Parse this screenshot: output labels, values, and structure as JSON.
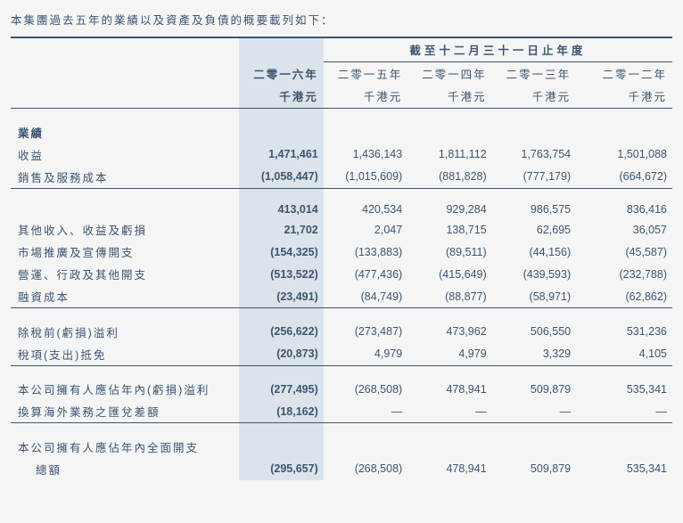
{
  "intro": "本集團過去五年的業績以及資產及負債的概要載列如下：",
  "header": {
    "span_title": "截至十二月三十一日止年度",
    "years": [
      "二零一六年",
      "二零一五年",
      "二零一四年",
      "二零一三年",
      "二零一二年"
    ],
    "units": [
      "千港元",
      "千港元",
      "千港元",
      "千港元",
      "千港元"
    ]
  },
  "sections": {
    "performance": "業績",
    "rows": {
      "revenue": {
        "label": "收益",
        "v": [
          "1,471,461",
          "1,436,143",
          "1,811,112",
          "1,763,754",
          "1,501,088"
        ]
      },
      "cost": {
        "label": "銷售及服務成本",
        "v": [
          "(1,058,447)",
          "(1,015,609)",
          "(881,828)",
          "(777,179)",
          "(664,672)"
        ]
      },
      "subtotal": {
        "label": "",
        "v": [
          "413,014",
          "420,534",
          "929,284",
          "986,575",
          "836,416"
        ]
      },
      "other": {
        "label": "其他收入、收益及虧損",
        "v": [
          "21,702",
          "2,047",
          "138,715",
          "62,695",
          "36,057"
        ]
      },
      "marketing": {
        "label": "市場推廣及宣傳開支",
        "v": [
          "(154,325)",
          "(133,883)",
          "(89,511)",
          "(44,156)",
          "(45,587)"
        ]
      },
      "admin": {
        "label": "營運、行政及其他開支",
        "v": [
          "(513,522)",
          "(477,436)",
          "(415,649)",
          "(439,593)",
          "(232,788)"
        ]
      },
      "finance": {
        "label": "融資成本",
        "v": [
          "(23,491)",
          "(84,749)",
          "(88,877)",
          "(58,971)",
          "(62,862)"
        ]
      },
      "pbt": {
        "label": "除稅前(虧損)溢利",
        "v": [
          "(256,622)",
          "(273,487)",
          "473,962",
          "506,550",
          "531,236"
        ]
      },
      "tax": {
        "label": "稅項(支出)抵免",
        "v": [
          "(20,873)",
          "4,979",
          "4,979",
          "3,329",
          "4,105"
        ]
      },
      "attrib": {
        "label": "本公司擁有人應佔年內(虧損)溢利",
        "v": [
          "(277,495)",
          "(268,508)",
          "478,941",
          "509,879",
          "535,341"
        ]
      },
      "fx": {
        "label": "換算海外業務之匯兌差額",
        "v": [
          "(18,162)",
          "—",
          "—",
          "—",
          "—"
        ]
      },
      "comp1": {
        "label": "本公司擁有人應佔年內全面開支",
        "v": [
          "",
          "",
          "",
          "",
          ""
        ]
      },
      "comp2": {
        "label": "總額",
        "v": [
          "(295,657)",
          "(268,508)",
          "478,941",
          "509,879",
          "535,341"
        ]
      }
    }
  }
}
